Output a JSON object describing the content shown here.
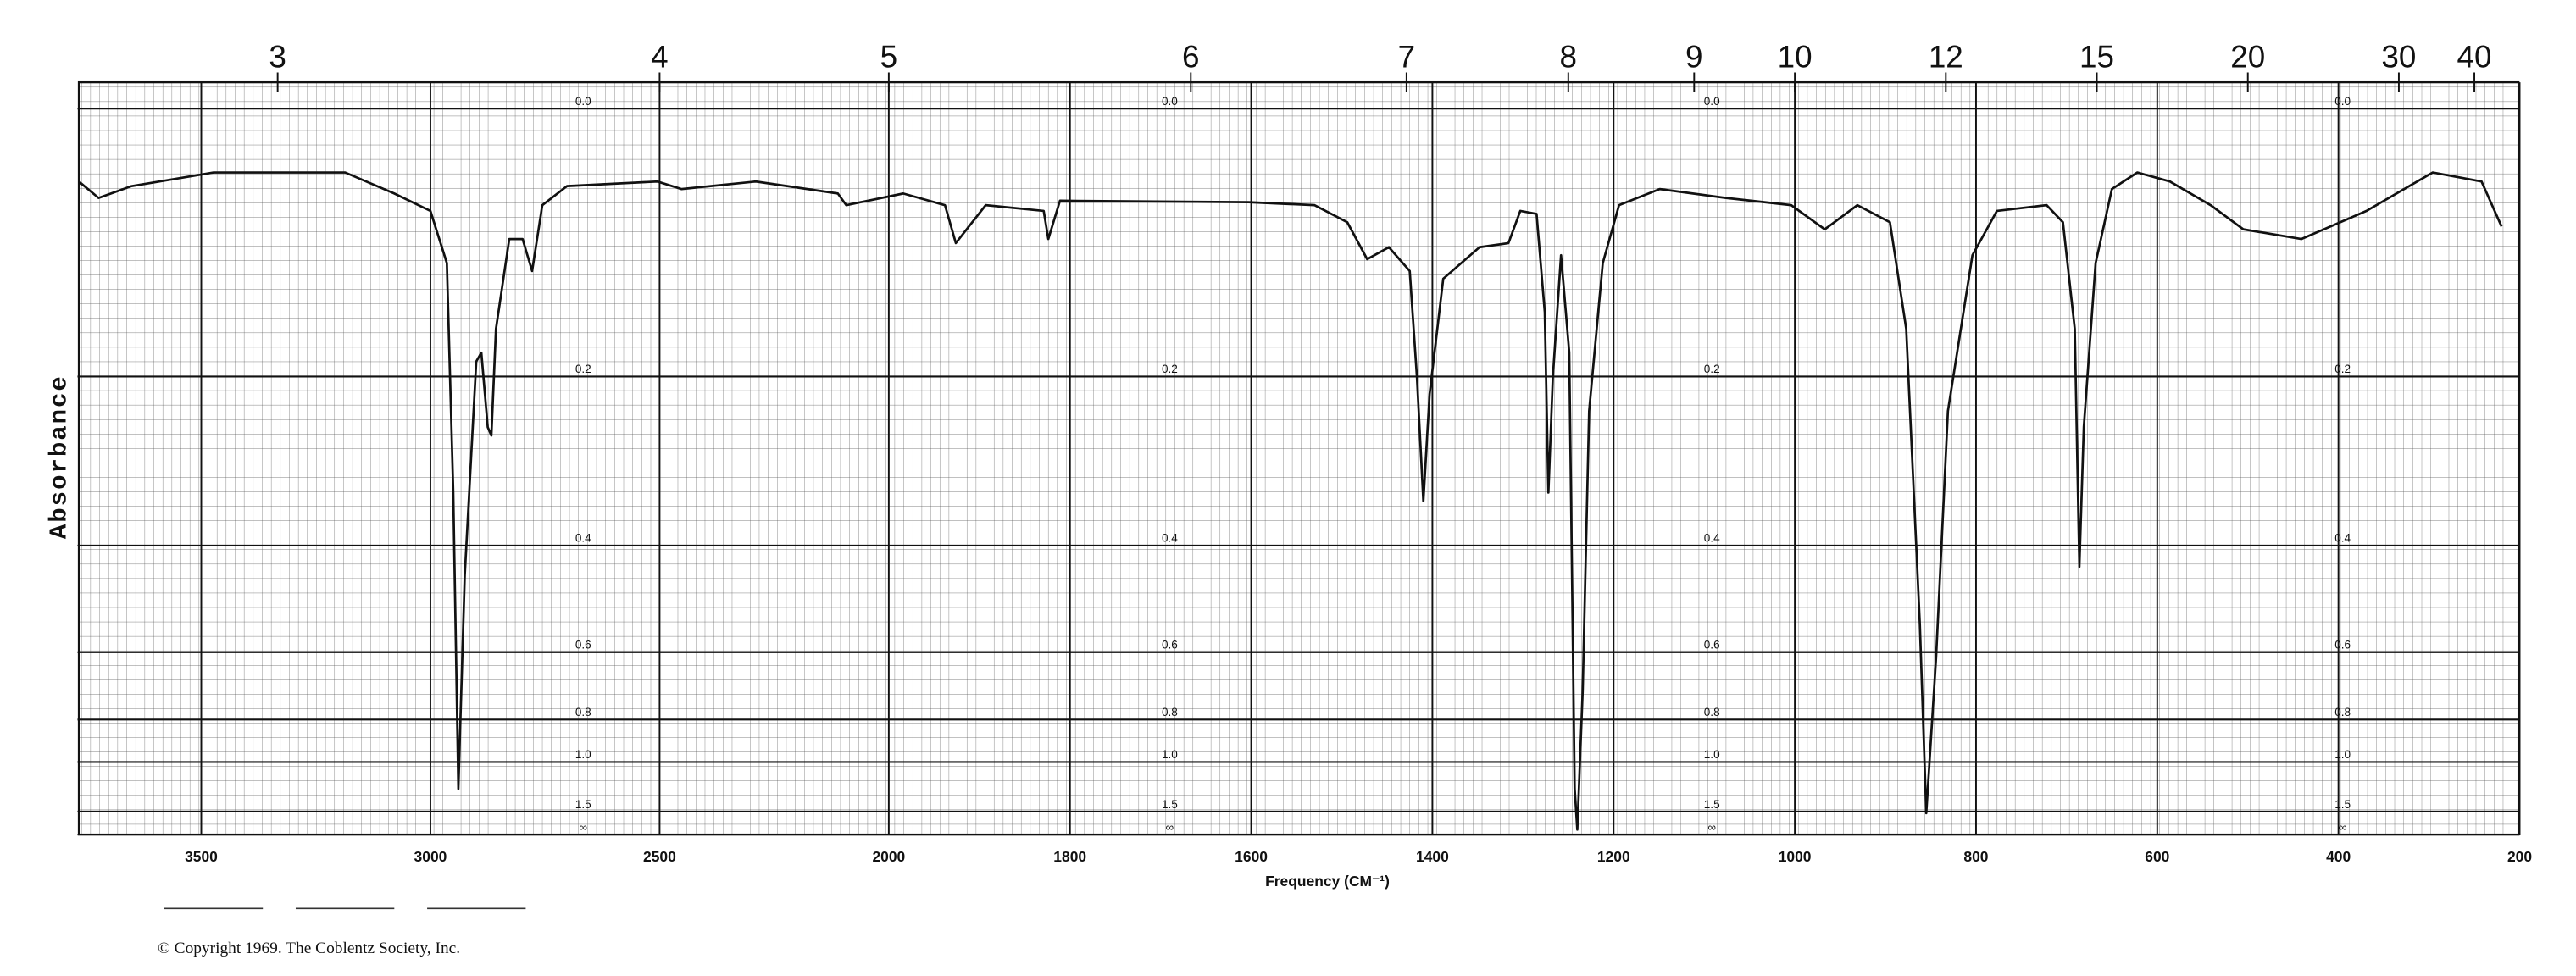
{
  "chart_data": {
    "type": "line",
    "y_title": "Absorbance",
    "x_title": "Frequency (CM⁻¹)",
    "footer": "© Copyright 1969.  The Coblentz Society, Inc.",
    "xlim": [
      3770,
      200
    ],
    "xscale_break": 2000,
    "xticks": [
      3500,
      3000,
      2500,
      2000,
      1800,
      1600,
      1400,
      1200,
      1000,
      800,
      600,
      400,
      200
    ],
    "x2ticks": [
      3,
      4,
      5,
      6,
      7,
      8,
      9,
      10,
      12,
      15,
      20,
      30,
      40
    ],
    "y_scale": "transmittance",
    "ylim": [
      0,
      null
    ],
    "yticks": [
      {
        "value": 0,
        "label": "0.0"
      },
      0.2,
      0.4,
      0.6,
      0.8,
      {
        "value": 1,
        "label": "1.0"
      },
      1.5,
      {
        "value": null,
        "label": "∞"
      }
    ],
    "grid": true,
    "series": [
      {
        "color": "#111111",
        "x": [
          3767,
          3724,
          3652,
          3473,
          3186,
          3079,
          3000,
          2964,
          2950,
          2939,
          2925,
          2900,
          2889,
          2875,
          2867,
          2857,
          2828,
          2799,
          2778,
          2756,
          2702,
          2505,
          2452,
          2290,
          2111,
          2093,
          1984,
          1938,
          1926,
          1893,
          1829,
          1824,
          1811,
          1603,
          1530,
          1494,
          1472,
          1448,
          1425,
          1417,
          1410,
          1403,
          1388,
          1348,
          1316,
          1303,
          1285,
          1276,
          1272,
          1267,
          1258,
          1249,
          1243,
          1240,
          1234,
          1227,
          1212,
          1194,
          1149,
          1076,
          1004,
          967,
          931,
          895,
          877,
          862,
          855,
          844,
          831,
          804,
          777,
          722,
          704,
          691,
          686,
          681,
          668,
          650,
          622,
          586,
          541,
          505,
          441,
          369,
          296,
          242,
          220
        ],
        "values": [
          0.046,
          0.057,
          0.049,
          0.04,
          0.04,
          0.054,
          0.066,
          0.104,
          0.327,
          1.2,
          0.447,
          0.186,
          0.178,
          0.251,
          0.26,
          0.157,
          0.086,
          0.086,
          0.11,
          0.062,
          0.049,
          0.046,
          0.051,
          0.046,
          0.054,
          0.062,
          0.054,
          0.062,
          0.089,
          0.062,
          0.066,
          0.086,
          0.059,
          0.06,
          0.062,
          0.074,
          0.101,
          0.092,
          0.11,
          0.201,
          0.338,
          0.217,
          0.116,
          0.092,
          0.089,
          0.066,
          0.068,
          0.143,
          0.327,
          0.201,
          0.098,
          0.178,
          1.2,
          2.17,
          0.701,
          0.234,
          0.104,
          0.062,
          0.051,
          0.057,
          0.062,
          0.079,
          0.062,
          0.074,
          0.157,
          0.538,
          1.53,
          0.612,
          0.234,
          0.098,
          0.066,
          0.062,
          0.074,
          0.157,
          0.433,
          0.251,
          0.104,
          0.051,
          0.04,
          0.046,
          0.062,
          0.079,
          0.086,
          0.066,
          0.04,
          0.046,
          0.077
        ]
      }
    ]
  }
}
